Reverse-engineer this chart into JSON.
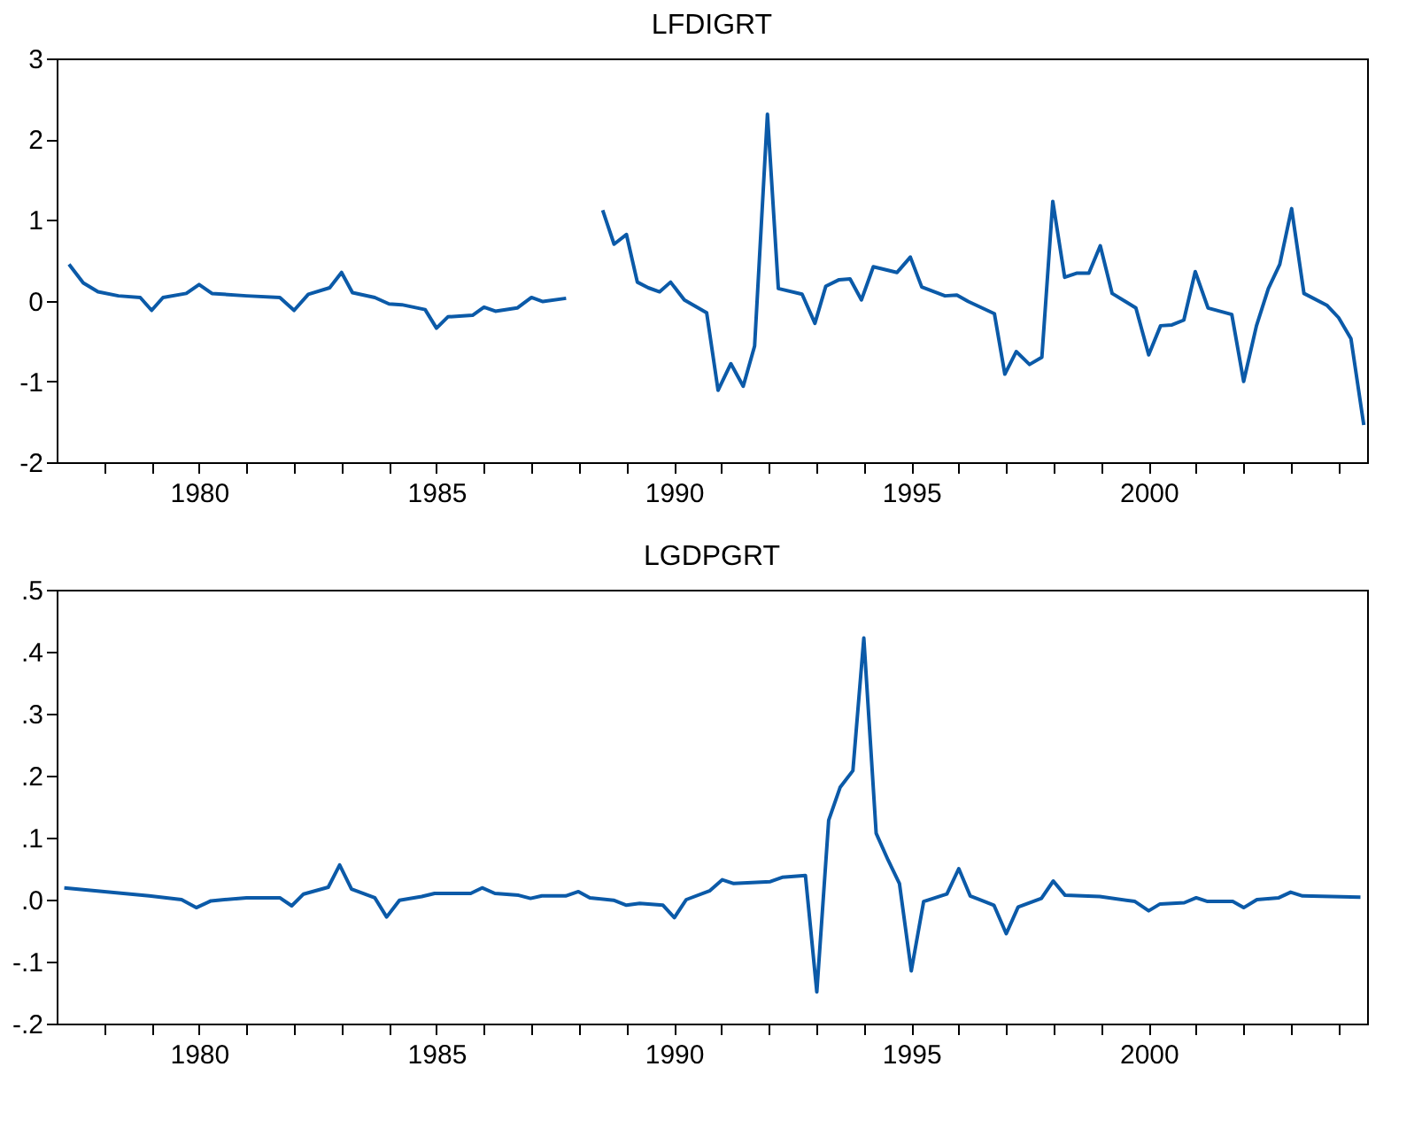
{
  "chart_data": [
    {
      "type": "line",
      "title": "LFDIGRT",
      "xlim": [
        1977,
        2004.6
      ],
      "ylim": [
        -2,
        3
      ],
      "xticks": [
        {
          "value": 1978,
          "label": null
        },
        {
          "value": 1979,
          "label": null
        },
        1980,
        {
          "value": 1981,
          "label": null
        },
        {
          "value": 1982,
          "label": null
        },
        {
          "value": 1983,
          "label": null
        },
        {
          "value": 1984,
          "label": null
        },
        1985,
        {
          "value": 1986,
          "label": null
        },
        {
          "value": 1987,
          "label": null
        },
        {
          "value": 1988,
          "label": null
        },
        {
          "value": 1989,
          "label": null
        },
        1990,
        {
          "value": 1991,
          "label": null
        },
        {
          "value": 1992,
          "label": null
        },
        {
          "value": 1993,
          "label": null
        },
        {
          "value": 1994,
          "label": null
        },
        1995,
        {
          "value": 1996,
          "label": null
        },
        {
          "value": 1997,
          "label": null
        },
        {
          "value": 1998,
          "label": null
        },
        {
          "value": 1999,
          "label": null
        },
        2000,
        {
          "value": 2001,
          "label": null
        },
        {
          "value": 2002,
          "label": null
        },
        {
          "value": 2003,
          "label": null
        },
        {
          "value": 2004,
          "label": null
        }
      ],
      "yticks": [
        -2,
        -1,
        0,
        1,
        2,
        3
      ],
      "grid": false,
      "legend": false,
      "marker": "none",
      "line_style": "solid",
      "series": [
        {
          "color": "#0b5aa8",
          "x": [
            1977.26,
            1977.56,
            1977.87,
            1978.3,
            1978.76,
            1979.0,
            1979.24,
            1979.73,
            1980.0,
            1980.27,
            1981.0,
            1981.7,
            1982.0,
            1982.3,
            1982.75,
            1983.0,
            1983.23,
            1983.7,
            1984.0,
            1984.27,
            1984.76,
            1985.0,
            1985.24,
            1985.76,
            1986.0,
            1986.24,
            1986.7,
            1987.0,
            1987.24,
            1987.73,
            1988.1,
            1988.5,
            1988.74,
            1989.0,
            1989.23,
            1989.46,
            1989.7,
            1989.93,
            1990.22,
            1990.69,
            1990.93,
            1991.2,
            1991.46,
            1991.7,
            1991.97,
            1992.2,
            1992.7,
            1992.97,
            1993.2,
            1993.48,
            1993.71,
            1993.95,
            1994.2,
            1994.7,
            1994.98,
            1995.22,
            1995.71,
            1995.96,
            1996.2,
            1996.75,
            1996.97,
            1997.21,
            1997.49,
            1997.75,
            1997.98,
            1998.23,
            1998.48,
            1998.74,
            1998.98,
            1999.23,
            1999.73,
            2000.0,
            2000.25,
            2000.49,
            2000.74,
            2000.98,
            2001.25,
            2001.75,
            2002.0,
            2002.27,
            2002.52,
            2002.76,
            2003.01,
            2003.27,
            2003.76,
            2004.0,
            2004.26,
            2004.53
          ],
          "values": [
            0.45,
            0.22,
            0.11,
            0.06,
            0.04,
            -0.12,
            0.04,
            0.09,
            0.2,
            0.09,
            0.06,
            0.04,
            -0.12,
            0.08,
            0.16,
            0.35,
            0.1,
            0.04,
            -0.04,
            -0.05,
            -0.11,
            -0.34,
            -0.2,
            -0.18,
            -0.08,
            -0.13,
            -0.09,
            0.04,
            -0.01,
            0.03,
            null,
            1.12,
            0.7,
            0.82,
            0.23,
            0.16,
            0.11,
            0.23,
            0.01,
            -0.15,
            -1.11,
            -0.78,
            -1.06,
            -0.56,
            2.31,
            0.15,
            0.08,
            -0.28,
            0.18,
            0.26,
            0.27,
            0.01,
            0.42,
            0.35,
            0.54,
            0.17,
            0.06,
            0.07,
            -0.01,
            -0.16,
            -0.91,
            -0.63,
            -0.79,
            -0.7,
            1.23,
            0.29,
            0.34,
            0.34,
            0.68,
            0.09,
            -0.09,
            -0.67,
            -0.31,
            -0.3,
            -0.24,
            0.36,
            -0.09,
            -0.17,
            -1.0,
            -0.31,
            0.15,
            0.45,
            1.14,
            0.09,
            -0.06,
            -0.21,
            -0.47,
            -1.54
          ]
        }
      ]
    },
    {
      "type": "line",
      "title": "LGDPGRT",
      "xlim": [
        1977,
        2004.6
      ],
      "ylim": [
        -0.2,
        0.5
      ],
      "xticks": [
        {
          "value": 1978,
          "label": null
        },
        {
          "value": 1979,
          "label": null
        },
        1980,
        {
          "value": 1981,
          "label": null
        },
        {
          "value": 1982,
          "label": null
        },
        {
          "value": 1983,
          "label": null
        },
        {
          "value": 1984,
          "label": null
        },
        1985,
        {
          "value": 1986,
          "label": null
        },
        {
          "value": 1987,
          "label": null
        },
        {
          "value": 1988,
          "label": null
        },
        {
          "value": 1989,
          "label": null
        },
        1990,
        {
          "value": 1991,
          "label": null
        },
        {
          "value": 1992,
          "label": null
        },
        {
          "value": 1993,
          "label": null
        },
        {
          "value": 1994,
          "label": null
        },
        1995,
        {
          "value": 1996,
          "label": null
        },
        {
          "value": 1997,
          "label": null
        },
        {
          "value": 1998,
          "label": null
        },
        {
          "value": 1999,
          "label": null
        },
        2000,
        {
          "value": 2001,
          "label": null
        },
        {
          "value": 2002,
          "label": null
        },
        {
          "value": 2003,
          "label": null
        },
        {
          "value": 2004,
          "label": null
        }
      ],
      "yticks": [
        {
          "value": -0.2,
          "label": "-.2"
        },
        {
          "value": -0.1,
          "label": "-.1"
        },
        {
          "value": 0,
          "label": ".0"
        },
        {
          "value": 0.1,
          "label": ".1"
        },
        {
          "value": 0.2,
          "label": ".2"
        },
        {
          "value": 0.3,
          "label": ".3"
        },
        {
          "value": 0.4,
          "label": ".4"
        },
        {
          "value": 0.5,
          "label": ".5"
        }
      ],
      "grid": false,
      "legend": false,
      "marker": "none",
      "line_style": "solid",
      "series": [
        {
          "color": "#0b5aa8",
          "x": [
            1977.16,
            1978.95,
            1979.63,
            1979.94,
            1980.25,
            1981.0,
            1981.7,
            1981.95,
            1982.2,
            1982.72,
            1982.96,
            1983.21,
            1983.7,
            1983.95,
            1984.22,
            1984.69,
            1984.96,
            1985.72,
            1985.96,
            1986.23,
            1986.73,
            1986.98,
            1987.22,
            1987.72,
            1987.99,
            1988.23,
            1988.73,
            1989.0,
            1989.28,
            1989.77,
            1990.01,
            1990.26,
            1990.75,
            1991.02,
            1991.26,
            1992.03,
            1992.28,
            1992.77,
            1993.01,
            1993.26,
            1993.5,
            1993.77,
            1994.0,
            1994.26,
            1994.51,
            1994.75,
            1995.0,
            1995.26,
            1995.75,
            1996.0,
            1996.24,
            1996.74,
            1997.0,
            1997.25,
            1997.74,
            1997.99,
            1998.24,
            1998.97,
            1999.71,
            2000.0,
            2000.24,
            2000.75,
            2001.0,
            2001.24,
            2001.77,
            2002.0,
            2002.28,
            2002.74,
            2002.99,
            2003.24,
            2004.46
          ],
          "values": [
            0.019,
            0.006,
            0.0,
            -0.013,
            -0.002,
            0.003,
            0.003,
            -0.01,
            0.009,
            0.02,
            0.056,
            0.017,
            0.003,
            -0.028,
            -0.001,
            0.005,
            0.01,
            0.01,
            0.019,
            0.01,
            0.007,
            0.002,
            0.006,
            0.006,
            0.013,
            0.003,
            -0.001,
            -0.009,
            -0.006,
            -0.009,
            -0.029,
            0.0,
            0.014,
            0.032,
            0.026,
            0.029,
            0.036,
            0.039,
            -0.149,
            0.128,
            0.181,
            0.208,
            0.422,
            0.107,
            0.064,
            0.026,
            -0.115,
            -0.003,
            0.009,
            0.05,
            0.006,
            -0.009,
            -0.055,
            -0.012,
            0.002,
            0.03,
            0.007,
            0.005,
            -0.003,
            -0.018,
            -0.007,
            -0.005,
            0.003,
            -0.003,
            -0.003,
            -0.013,
            0.0,
            0.003,
            0.012,
            0.006,
            0.004
          ]
        }
      ]
    }
  ]
}
